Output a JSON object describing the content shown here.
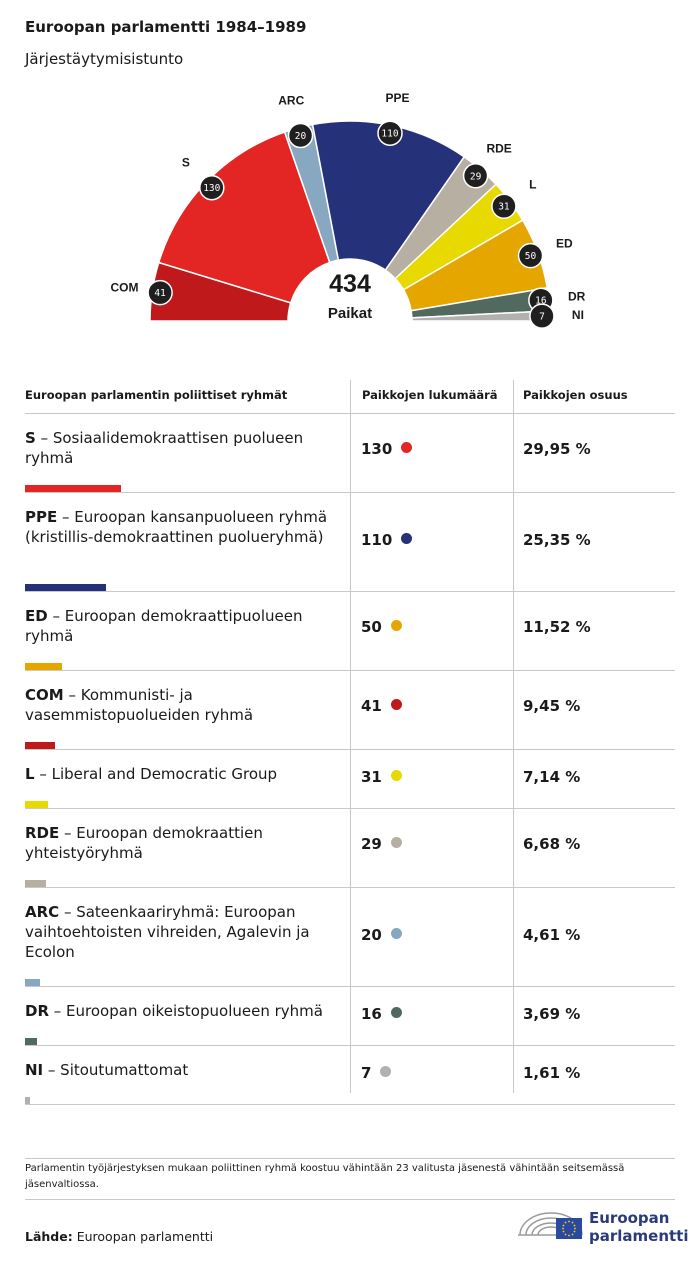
{
  "header": {
    "title": "Euroopan parlamentti 1984–1989",
    "subtitle": "Järjestäytymisistunto"
  },
  "chart_data": {
    "type": "pie",
    "variant": "parliament-half-donut",
    "center_value": "434",
    "center_label": "Paikat",
    "series": [
      {
        "abbr": "COM",
        "seats": 41,
        "color": "#c0191c"
      },
      {
        "abbr": "S",
        "seats": 130,
        "color": "#e32624"
      },
      {
        "abbr": "ARC",
        "seats": 20,
        "color": "#87a8c0"
      },
      {
        "abbr": "PPE",
        "seats": 110,
        "color": "#25327a"
      },
      {
        "abbr": "RDE",
        "seats": 29,
        "color": "#b6afa2"
      },
      {
        "abbr": "L",
        "seats": 31,
        "color": "#e8d900"
      },
      {
        "abbr": "ED",
        "seats": 50,
        "color": "#e6a600"
      },
      {
        "abbr": "DR",
        "seats": 16,
        "color": "#52695f"
      },
      {
        "abbr": "NI",
        "seats": 7,
        "color": "#b1b1b1"
      }
    ]
  },
  "table": {
    "headers": [
      "Euroopan parlamentin poliittiset ryhmät",
      "Paikkojen lukumäärä",
      "Paikkojen osuus"
    ],
    "rows": [
      {
        "abbr": "S",
        "name": " – Sosiaalidemokraattisen puolueen ryhmä",
        "seats": "130",
        "pct": "29,95 %",
        "share": 29.95,
        "color": "#e32624"
      },
      {
        "abbr": "PPE",
        "name": " – Euroopan kansanpuolueen ryhmä (kristillis-demokraattinen puolueryhmä)",
        "seats": "110",
        "pct": "25,35 %",
        "share": 25.35,
        "color": "#25327a"
      },
      {
        "abbr": "ED",
        "name": " – Euroopan demokraattipuolueen ryhmä",
        "seats": "50",
        "pct": "11,52 %",
        "share": 11.52,
        "color": "#e6a600"
      },
      {
        "abbr": "COM",
        "name": " – Kommunisti- ja vasemmistopuolueiden ryhmä",
        "seats": "41",
        "pct": "9,45 %",
        "share": 9.45,
        "color": "#c0191c"
      },
      {
        "abbr": "L",
        "name": " – Liberal and Democratic Group",
        "seats": "31",
        "pct": "7,14 %",
        "share": 7.14,
        "color": "#e8d900"
      },
      {
        "abbr": "RDE",
        "name": " – Euroopan demokraattien yhteistyöryhmä",
        "seats": "29",
        "pct": "6,68 %",
        "share": 6.68,
        "color": "#b6afa2"
      },
      {
        "abbr": "ARC",
        "name": " – Sateenkaariryhmä: Euroopan vaihtoehtoisten vihreiden, Agalevin ja Ecolon",
        "seats": "20",
        "pct": "4,61 %",
        "share": 4.61,
        "color": "#87a8c0"
      },
      {
        "abbr": "DR",
        "name": " – Euroopan oikeistopuolueen ryhmä",
        "seats": "16",
        "pct": "3,69 %",
        "share": 3.69,
        "color": "#52695f"
      },
      {
        "abbr": "NI",
        "name": " – Sitoutumattomat",
        "seats": "7",
        "pct": "1,61 %",
        "share": 1.61,
        "color": "#b1b1b1"
      }
    ]
  },
  "footer": {
    "note": "Parlamentin työjärjestyksen mukaan poliittinen ryhmä koostuu vähintään 23 valitusta jäsenestä vähintään seitsemässä jäsenvaltiossa.",
    "source_label": "Lähde:",
    "source_value": " Euroopan parlamentti",
    "logo_line1": "Euroopan",
    "logo_line2": "parlamentti"
  }
}
